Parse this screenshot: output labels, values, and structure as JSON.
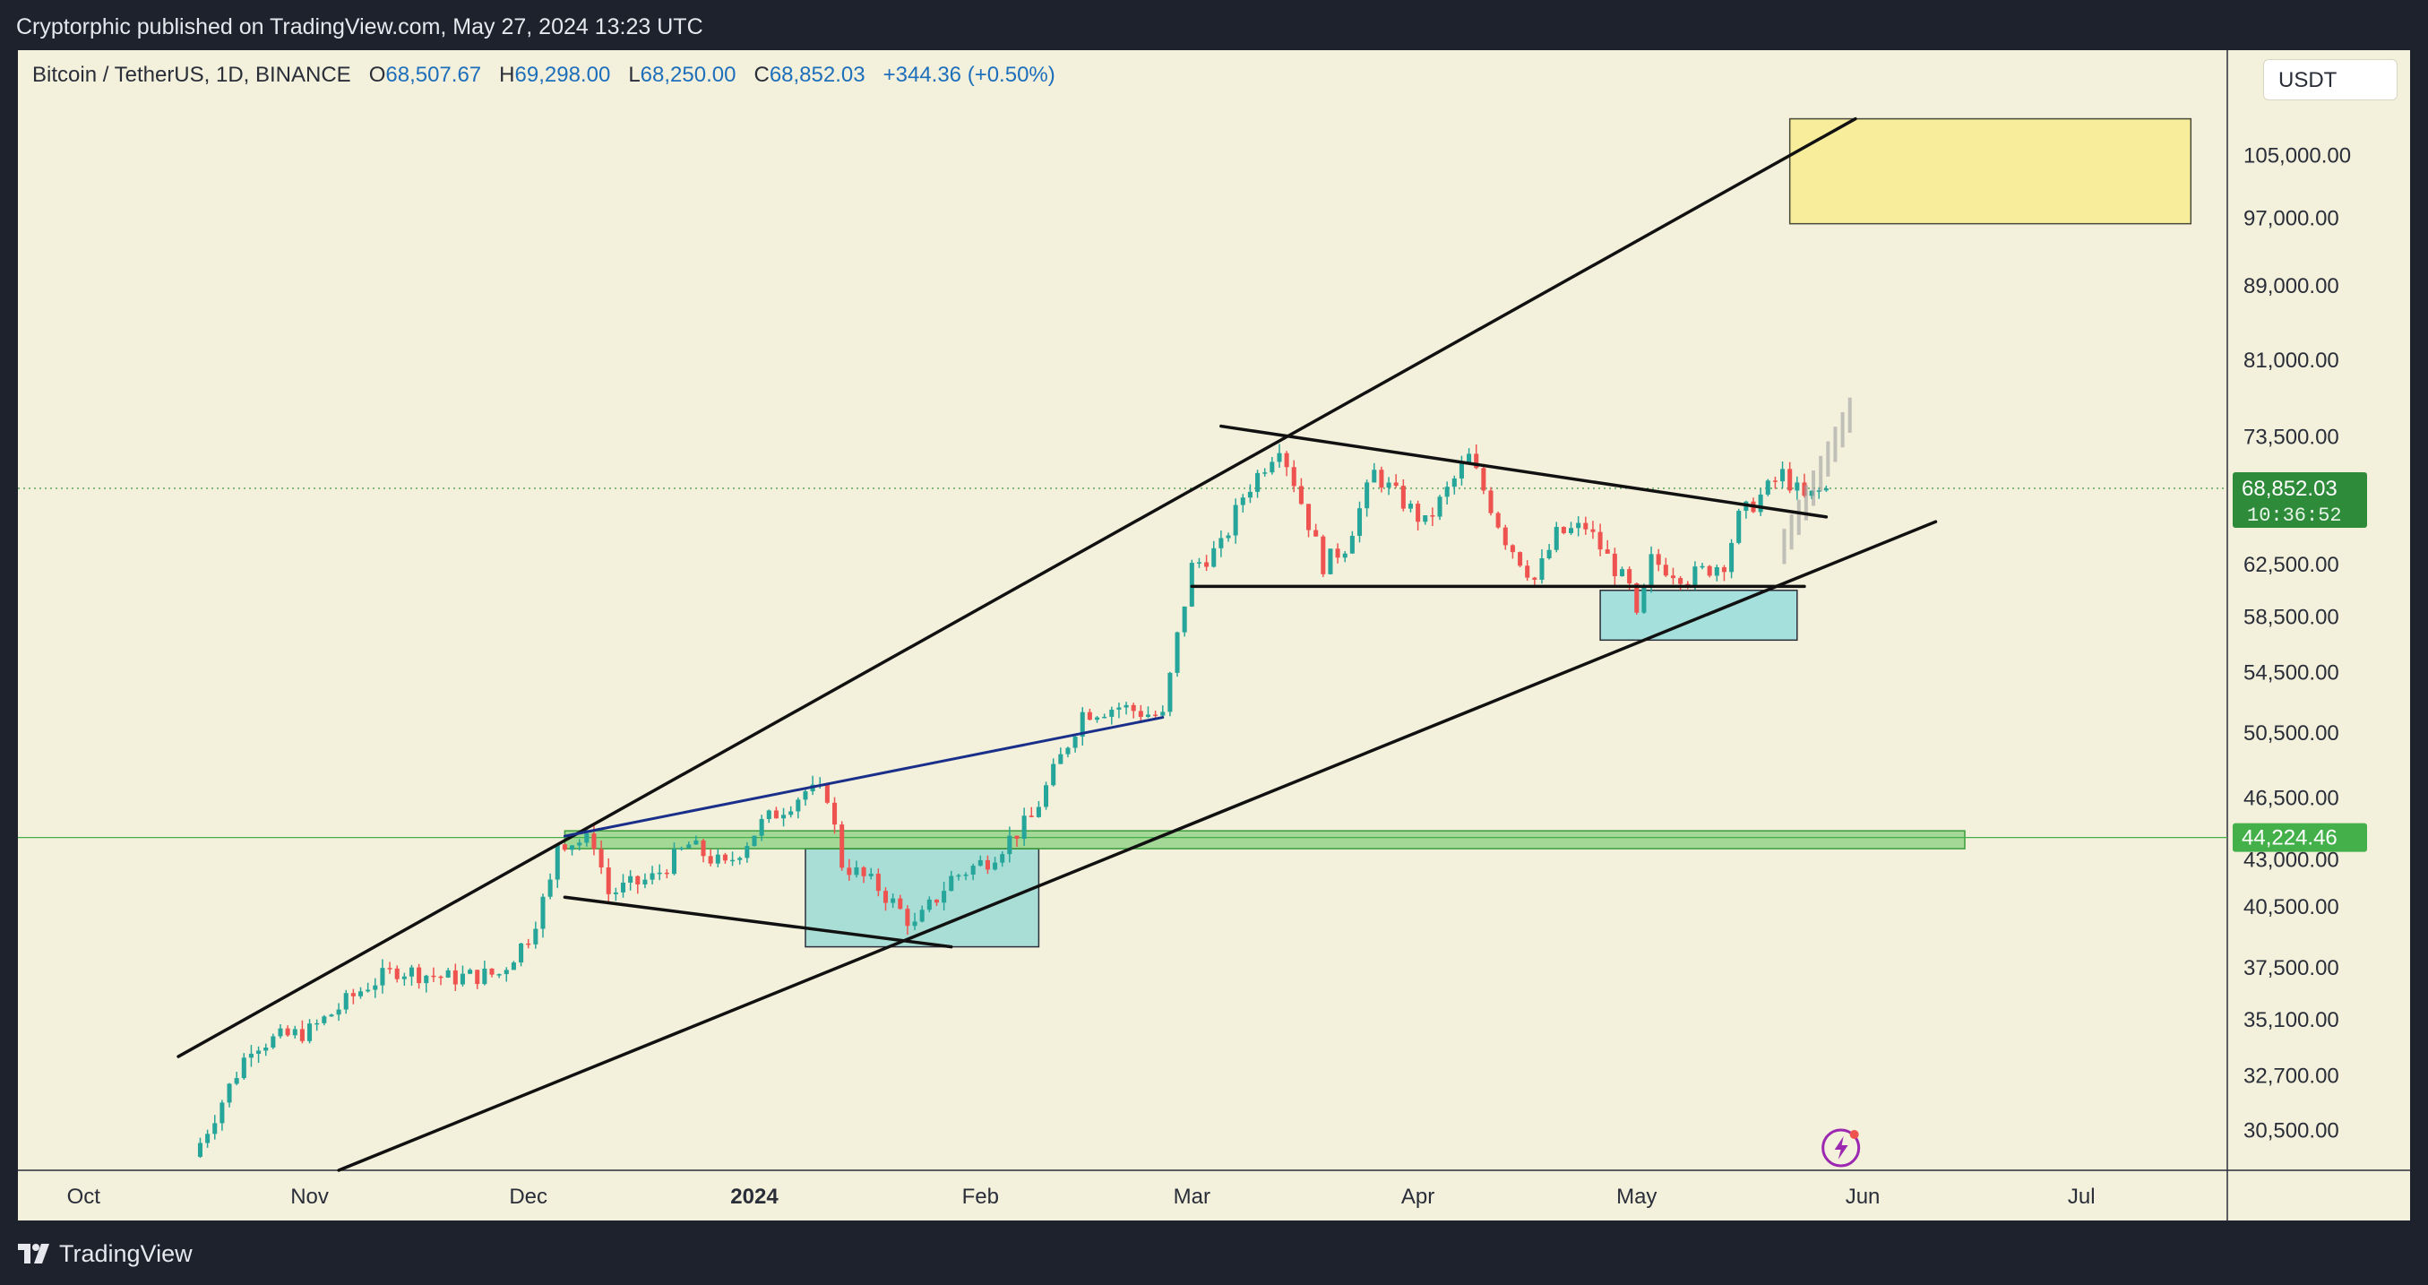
{
  "header": {
    "publisher_line": "Cryptorphic published on TradingView.com, May 27, 2024 13:23 UTC"
  },
  "legend": {
    "symbol": "Bitcoin / TetherUS, 1D, BINANCE",
    "open_label": "O",
    "open": "68,507.67",
    "high_label": "H",
    "high": "69,298.00",
    "low_label": "L",
    "low": "68,250.00",
    "close_label": "C",
    "close": "68,852.03",
    "change": "+344.36 (+0.50%)"
  },
  "currency_button": "USDT",
  "footer": {
    "brand": "TradingView"
  },
  "colors": {
    "background": "#f3f0db",
    "bull": "#26a69a",
    "bear": "#ef5350",
    "price_tag": "#2e8b3a",
    "support_zone_tag": "#43b04a"
  },
  "icons": [
    "tradingview-logo-icon",
    "lightning-icon"
  ],
  "chart_data": {
    "type": "candlestick",
    "symbol": "Bitcoin / TetherUS",
    "interval": "1D",
    "exchange": "BINANCE",
    "price_axis": {
      "ticks": [
        "105,000.00",
        "97,000.00",
        "89,000.00",
        "81,000.00",
        "73,500.00",
        "62,500.00",
        "58,500.00",
        "54,500.00",
        "50,500.00",
        "46,500.00",
        "43,000.00",
        "40,500.00",
        "37,500.00",
        "35,100.00",
        "32,700.00",
        "30,500.00"
      ],
      "tick_values": [
        105000,
        97000,
        89000,
        81000,
        73500,
        62500,
        58500,
        54500,
        50500,
        46500,
        43000,
        40500,
        37500,
        35100,
        32700,
        30500
      ],
      "scale": "logarithmic",
      "range": [
        29000,
        120000
      ]
    },
    "time_axis": {
      "labels": [
        "Oct",
        "Nov",
        "Dec",
        "2024",
        "Feb",
        "Mar",
        "Apr",
        "May",
        "Jun",
        "Jul"
      ],
      "bold": [
        "2024"
      ],
      "dates": [
        "2023-10-01",
        "2023-11-01",
        "2023-12-01",
        "2024-01-01",
        "2024-02-01",
        "2024-03-01",
        "2024-04-01",
        "2024-05-01",
        "2024-06-01",
        "2024-07-01"
      ],
      "range": [
        "2023-09-22",
        "2024-07-21"
      ]
    },
    "last_price": {
      "value": 68852.03,
      "label": "68,852.03",
      "countdown": "10:36:52"
    },
    "horizontal_level": {
      "value": 44224.46,
      "label": "44,224.46"
    },
    "price_path": [
      [
        "2023-10-16",
        29500
      ],
      [
        "2023-10-24",
        34000
      ],
      [
        "2023-11-01",
        34600
      ],
      [
        "2023-11-09",
        36700
      ],
      [
        "2023-11-13",
        37400
      ],
      [
        "2023-11-20",
        37000
      ],
      [
        "2023-11-27",
        37200
      ],
      [
        "2023-12-01",
        39000
      ],
      [
        "2023-12-04",
        41700
      ],
      [
        "2023-12-05",
        44000
      ],
      [
        "2023-12-10",
        44000
      ],
      [
        "2023-12-12",
        41200
      ],
      [
        "2023-12-18",
        42000
      ],
      [
        "2023-12-23",
        43800
      ],
      [
        "2023-12-28",
        42600
      ],
      [
        "2024-01-02",
        45000
      ],
      [
        "2024-01-08",
        46900
      ],
      [
        "2024-01-11",
        46700
      ],
      [
        "2024-01-13",
        42800
      ],
      [
        "2024-01-18",
        41500
      ],
      [
        "2024-01-23",
        39500
      ],
      [
        "2024-01-28",
        42000
      ],
      [
        "2024-02-02",
        43000
      ],
      [
        "2024-02-08",
        45300
      ],
      [
        "2024-02-10",
        47100
      ],
      [
        "2024-02-15",
        51800
      ],
      [
        "2024-02-20",
        52200
      ],
      [
        "2024-02-26",
        51500
      ],
      [
        "2024-02-28",
        57000
      ],
      [
        "2024-03-01",
        62300
      ],
      [
        "2024-03-05",
        63900
      ],
      [
        "2024-03-08",
        68200
      ],
      [
        "2024-03-13",
        72900
      ],
      [
        "2024-03-15",
        69500
      ],
      [
        "2024-03-19",
        62500
      ],
      [
        "2024-03-22",
        64000
      ],
      [
        "2024-03-26",
        70200
      ],
      [
        "2024-04-02",
        65800
      ],
      [
        "2024-04-08",
        71600
      ],
      [
        "2024-04-13",
        64600
      ],
      [
        "2024-04-17",
        61300
      ],
      [
        "2024-04-20",
        64900
      ],
      [
        "2024-04-24",
        65600
      ],
      [
        "2024-04-30",
        60600
      ],
      [
        "2024-05-01",
        58200
      ],
      [
        "2024-05-03",
        62800
      ],
      [
        "2024-05-08",
        61500
      ],
      [
        "2024-05-13",
        62700
      ],
      [
        "2024-05-15",
        66300
      ],
      [
        "2024-05-21",
        70100
      ],
      [
        "2024-05-24",
        67900
      ],
      [
        "2024-05-27",
        68852
      ]
    ],
    "drawings": [
      {
        "kind": "trendline",
        "name": "rising-channel-upper",
        "from": [
          "2023-10-14",
          33500
        ],
        "to": [
          "2024-05-31",
          110000
        ]
      },
      {
        "kind": "trendline",
        "name": "rising-channel-lower",
        "from": [
          "2023-11-05",
          29000
        ],
        "to": [
          "2024-06-11",
          66000
        ]
      },
      {
        "kind": "trendline",
        "name": "descending-resistance",
        "from": [
          "2024-03-05",
          74500
        ],
        "to": [
          "2024-05-27",
          66400
        ]
      },
      {
        "kind": "trendline",
        "name": "range-support",
        "from": [
          "2024-03-01",
          60800
        ],
        "to": [
          "2024-05-24",
          60800
        ]
      },
      {
        "kind": "trendline",
        "name": "blue-rising-wedge",
        "from": [
          "2023-12-06",
          44300
        ],
        "to": [
          "2024-02-26",
          51500
        ]
      },
      {
        "kind": "trendline",
        "name": "lower-wedge-line",
        "from": [
          "2023-12-06",
          41000
        ],
        "to": [
          "2024-01-28",
          38500
        ]
      },
      {
        "kind": "zone",
        "name": "target-zone",
        "from": [
          "2024-05-22",
          110000
        ],
        "to": [
          "2024-07-16",
          96300
        ]
      },
      {
        "kind": "zone",
        "name": "demand-zone-may",
        "from": [
          "2024-04-26",
          60500
        ],
        "to": [
          "2024-05-23",
          56800
        ]
      },
      {
        "kind": "zone",
        "name": "demand-zone-jan",
        "from": [
          "2024-01-08",
          43600
        ],
        "to": [
          "2024-02-09",
          38500
        ]
      },
      {
        "kind": "zone",
        "name": "support-band",
        "from": [
          "2023-12-06",
          44600
        ],
        "to": [
          "2024-06-15",
          43600
        ]
      },
      {
        "kind": "projection",
        "name": "projected-path",
        "from": [
          "2024-05-21",
          63500
        ],
        "to": [
          "2024-05-30",
          75000
        ]
      }
    ]
  }
}
